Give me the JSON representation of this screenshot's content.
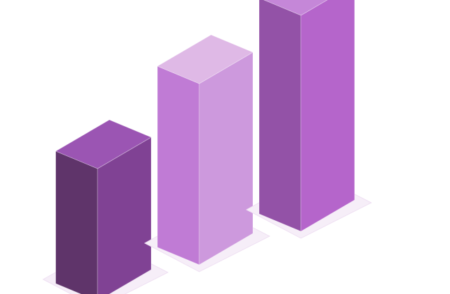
{
  "chart_data": {
    "type": "bar",
    "style": "3d-isometric",
    "categories": [
      "",
      "",
      ""
    ],
    "values": [
      1.9,
      2.6,
      3.1
    ],
    "ylim": [
      0,
      3.5
    ],
    "title": "",
    "xlabel": "",
    "ylabel": "",
    "grid": false,
    "legend": "none",
    "colors": [
      {
        "top": "#9b55b3",
        "left": "#5f346a",
        "right": "#804294"
      },
      {
        "top": "#dfb9e6",
        "left": "#c07bd5",
        "right": "#cd99dd"
      },
      {
        "top": "#c587d8",
        "left": "#9352a7",
        "right": "#b565cb"
      }
    ],
    "shadow_color": "#f6eef8",
    "shadow_edge": "#efe0f3"
  }
}
